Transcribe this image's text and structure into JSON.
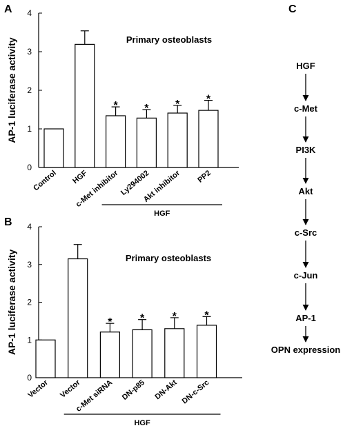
{
  "chart_data": [
    {
      "panel": "A",
      "type": "bar",
      "ylabel": "AP-1 luciferase activity",
      "ylim": [
        0,
        4
      ],
      "yticks": [
        0,
        1,
        2,
        3,
        4
      ],
      "annotation": "Primary osteoblasts",
      "categories": [
        "Control",
        "HGF",
        "c-Met inhibitor",
        "Ly294002",
        "Akt inhibitor",
        "PP2"
      ],
      "values": [
        1.0,
        3.19,
        1.34,
        1.28,
        1.41,
        1.48
      ],
      "errors": [
        0,
        0.35,
        0.23,
        0.22,
        0.2,
        0.26
      ],
      "significance": [
        "",
        "",
        "*",
        "*",
        "*",
        "*"
      ],
      "bracket_label": "HGF",
      "bracket_span": [
        2,
        5
      ]
    },
    {
      "panel": "B",
      "type": "bar",
      "ylabel": "AP-1 luciferase activity",
      "ylim": [
        0,
        4
      ],
      "yticks": [
        0,
        1,
        2,
        3,
        4
      ],
      "annotation": "Primary osteoblasts",
      "categories": [
        "Vector",
        "Vector",
        "c-Met siRNA",
        "DN-p85",
        "DN-Akt",
        "DN-c-Src"
      ],
      "values": [
        1.0,
        3.15,
        1.21,
        1.27,
        1.3,
        1.39
      ],
      "errors": [
        0,
        0.38,
        0.23,
        0.27,
        0.29,
        0.23
      ],
      "significance": [
        "",
        "",
        "*",
        "*",
        "*",
        "*"
      ],
      "bracket_label": "HGF",
      "bracket_span": [
        1,
        5
      ]
    }
  ],
  "pathway": {
    "panel": "C",
    "nodes": [
      "HGF",
      "c-Met",
      "PI3K",
      "Akt",
      "c-Src",
      "c-Jun",
      "AP-1",
      "OPN expression"
    ]
  }
}
